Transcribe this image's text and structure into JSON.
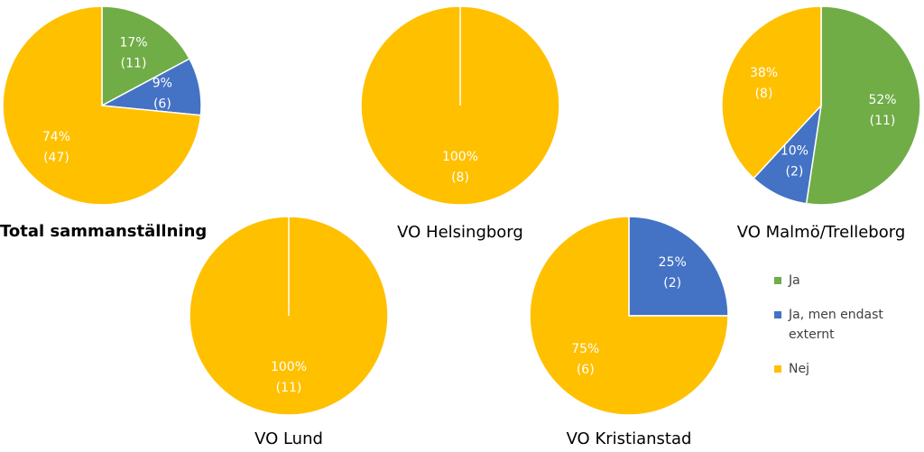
{
  "chart_data": [
    {
      "type": "pie",
      "title": "Total sammanställning",
      "values": [
        11,
        6,
        47
      ],
      "value_labels": [
        "(11)",
        "(6)",
        "(47)"
      ],
      "percents": [
        17,
        9,
        74
      ],
      "percent_labels": [
        "17%",
        "9%",
        "74%"
      ]
    },
    {
      "type": "pie",
      "title": "VO Helsingborg",
      "values": [
        0,
        0,
        8
      ],
      "value_labels": [
        null,
        null,
        "(8)"
      ],
      "percents": [
        null,
        null,
        100
      ],
      "percent_labels": [
        null,
        null,
        "100%"
      ]
    },
    {
      "type": "pie",
      "title": "VO Malmö/Trelleborg",
      "values": [
        11,
        2,
        8
      ],
      "value_labels": [
        "(11)",
        "(2)",
        "(8)"
      ],
      "percents": [
        52,
        10,
        38
      ],
      "percent_labels": [
        "52%",
        "10%",
        "38%"
      ]
    },
    {
      "type": "pie",
      "title": "VO Lund",
      "values": [
        0,
        0,
        11
      ],
      "value_labels": [
        null,
        null,
        "(11)"
      ],
      "percents": [
        null,
        null,
        100
      ],
      "percent_labels": [
        null,
        null,
        "100%"
      ]
    },
    {
      "type": "pie",
      "title": "VO Kristianstad",
      "values": [
        0,
        2,
        6
      ],
      "value_labels": [
        null,
        "(2)",
        "(6)"
      ],
      "percents": [
        null,
        25,
        75
      ],
      "percent_labels": [
        null,
        "25%",
        "75%"
      ]
    }
  ],
  "legend": {
    "labels": [
      "Ja",
      "Ja, men endast externt",
      "Nej"
    ],
    "colors": [
      "#70ad47",
      "#4472c4",
      "#ffc000"
    ]
  }
}
